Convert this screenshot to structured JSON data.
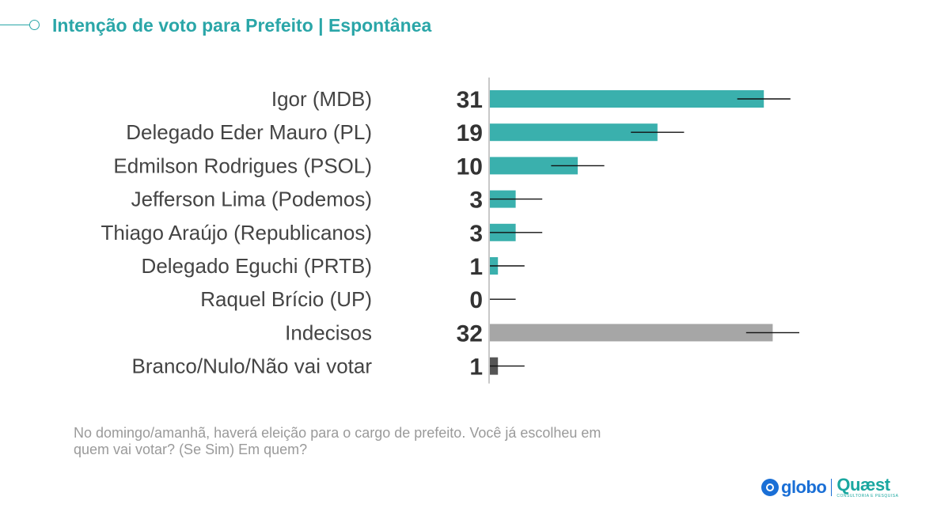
{
  "header": {
    "title": "Intenção de voto para Prefeito | Espontânea"
  },
  "question": "No domingo/amanhã, haverá eleição para o cargo de prefeito. Você já escolheu em quem vai votar? (Se Sim) Em quem?",
  "logos": {
    "globo": "globo",
    "quaest": "Quæst",
    "quaest_sub": "CONSULTORIA E PESQUISA"
  },
  "colors": {
    "accent": "#2aa6a8",
    "bar_candidate": "#3ab0ad",
    "bar_undecided": "#a6a6a6",
    "bar_blank": "#555555"
  },
  "chart_data": {
    "type": "bar",
    "orientation": "horizontal",
    "title": "Intenção de voto para Prefeito | Espontânea",
    "unit": "%",
    "margin_of_error": 3,
    "xlim": [
      0,
      45
    ],
    "categories": [
      "Igor (MDB)",
      "Delegado Eder Mauro (PL)",
      "Edmilson Rodrigues (PSOL)",
      "Jefferson Lima (Podemos)",
      "Thiago Araújo (Republicanos)",
      "Delegado Eguchi (PRTB)",
      "Raquel Brício (UP)",
      "Indecisos",
      "Branco/Nulo/Não vai votar"
    ],
    "values": [
      31,
      19,
      10,
      3,
      3,
      1,
      0,
      32,
      1
    ],
    "groups": [
      "candidate",
      "candidate",
      "candidate",
      "candidate",
      "candidate",
      "candidate",
      "candidate",
      "undecided",
      "blank"
    ]
  }
}
